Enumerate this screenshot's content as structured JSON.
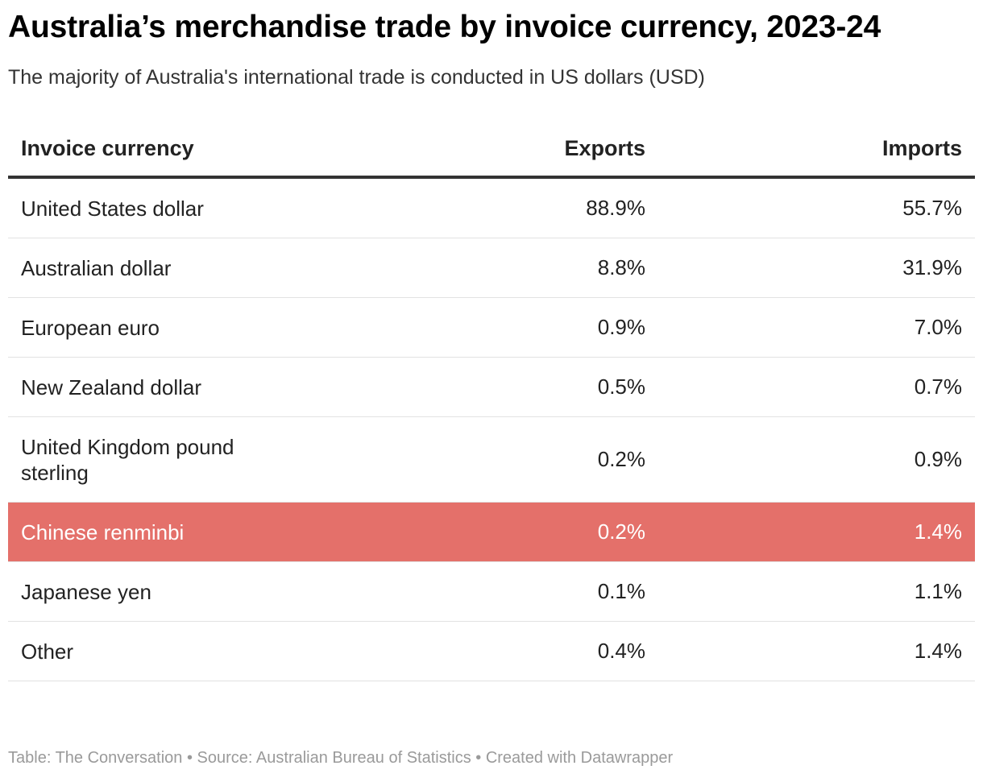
{
  "title": "Australia’s merchandise trade by invoice currency, 2023-24",
  "subtitle": "The majority of Australia's international trade is conducted in US dollars (USD)",
  "chart_data": {
    "type": "table",
    "columns": [
      "Invoice currency",
      "Exports",
      "Imports"
    ],
    "rows": [
      {
        "currency": "United States dollar",
        "exports": "88.9%",
        "imports": "55.7%",
        "highlight": false
      },
      {
        "currency": "Australian dollar",
        "exports": "8.8%",
        "imports": "31.9%",
        "highlight": false
      },
      {
        "currency": "European euro",
        "exports": "0.9%",
        "imports": "7.0%",
        "highlight": false
      },
      {
        "currency": "New Zealand dollar",
        "exports": "0.5%",
        "imports": "0.7%",
        "highlight": false
      },
      {
        "currency": "United Kingdom pound sterling",
        "exports": "0.2%",
        "imports": "0.9%",
        "highlight": false
      },
      {
        "currency": "Chinese renminbi",
        "exports": "0.2%",
        "imports": "1.4%",
        "highlight": true
      },
      {
        "currency": "Japanese yen",
        "exports": "0.1%",
        "imports": "1.1%",
        "highlight": false
      },
      {
        "currency": "Other",
        "exports": "0.4%",
        "imports": "1.4%",
        "highlight": false
      }
    ],
    "highlight_color": "#e4706a"
  },
  "footer": "Table: The Conversation • Source: Australian Bureau of Statistics • Created with Datawrapper"
}
